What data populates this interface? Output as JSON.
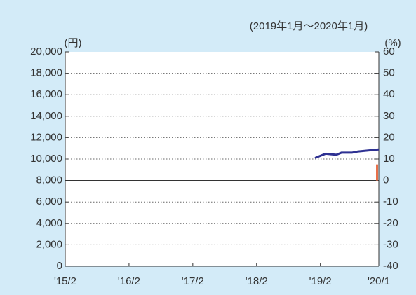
{
  "chart_data": {
    "type": "line",
    "subtitle": "(2019年1月～2020年1月)",
    "y_label": "(円)",
    "y2_label": "(%)",
    "xlim": [
      "2015-02",
      "2020-01"
    ],
    "xticks": [
      {
        "value": "2015-02",
        "label": "'15/2"
      },
      {
        "value": "2016-02",
        "label": "'16/2"
      },
      {
        "value": "2017-02",
        "label": "'17/2"
      },
      {
        "value": "2018-02",
        "label": "'18/2"
      },
      {
        "value": "2019-02",
        "label": "'19/2"
      },
      {
        "value": "2020-01",
        "label": "'20/1"
      }
    ],
    "ylim": [
      0,
      20000
    ],
    "yticks": [
      0,
      {
        "value": 2000,
        "label": "2,000"
      },
      {
        "value": 4000,
        "label": "4,000"
      },
      {
        "value": 6000,
        "label": "6,000"
      },
      {
        "value": 8000,
        "label": "8,000"
      },
      {
        "value": 10000,
        "label": "10,000"
      },
      {
        "value": 12000,
        "label": "12,000"
      },
      {
        "value": 14000,
        "label": "14,000"
      },
      {
        "value": 16000,
        "label": "16,000"
      },
      {
        "value": 18000,
        "label": "18,000"
      },
      {
        "value": 20000,
        "label": "20,000"
      }
    ],
    "y2lim": [
      -40,
      60
    ],
    "y2ticks": [
      -40,
      -30,
      -20,
      -10,
      0,
      10,
      20,
      30,
      40,
      50,
      60
    ],
    "grid": true,
    "series": [
      {
        "type": "line",
        "color": "#2e3192",
        "x": [
          "2019-01",
          "2019-02",
          "2019-03",
          "2019-04",
          "2019-05",
          "2019-06",
          "2019-07",
          "2019-08",
          "2019-09",
          "2019-10",
          "2019-11",
          "2019-12",
          "2020-01"
        ],
        "values": [
          10100,
          10300,
          10500,
          10450,
          10400,
          10600,
          10600,
          10600,
          10700,
          10750,
          10800,
          10850,
          10900
        ]
      },
      {
        "type": "bar",
        "axis": "y2",
        "color": "#e8704a",
        "x": [
          "2020-01"
        ],
        "values": [
          7.5
        ]
      }
    ]
  }
}
